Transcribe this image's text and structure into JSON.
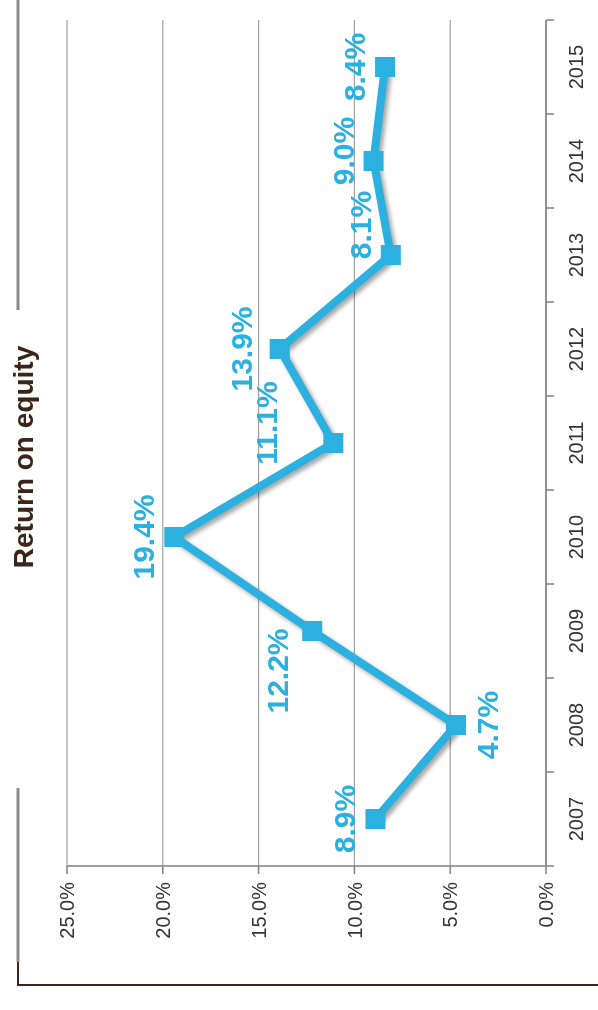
{
  "chart_data": {
    "type": "line",
    "orientation": "horizontal",
    "title": "Return on equity",
    "categories": [
      "2015",
      "2014",
      "2013",
      "2012",
      "2011",
      "2010",
      "2009",
      "2008",
      "2007"
    ],
    "values": [
      8.4,
      9.0,
      8.1,
      13.9,
      11.1,
      19.4,
      12.2,
      4.7,
      8.9
    ],
    "value_labels": [
      "8.4%",
      "9.0%",
      "8.1%",
      "13.9%",
      "11.1%",
      "19.4%",
      "12.2%",
      "4.7%",
      "8.9%"
    ],
    "color": "#2bb0e0",
    "xlim": [
      25,
      0
    ],
    "xticks": [
      {
        "value": 25,
        "label": "25.0%"
      },
      {
        "value": 20,
        "label": "20.0%"
      },
      {
        "value": 15,
        "label": "15.0%"
      },
      {
        "value": 10,
        "label": "10.0%"
      },
      {
        "value": 5,
        "label": "5.0%"
      },
      {
        "value": 0,
        "label": "0.0%"
      }
    ],
    "grid": "x",
    "marker": "square",
    "line_style": "solid"
  }
}
